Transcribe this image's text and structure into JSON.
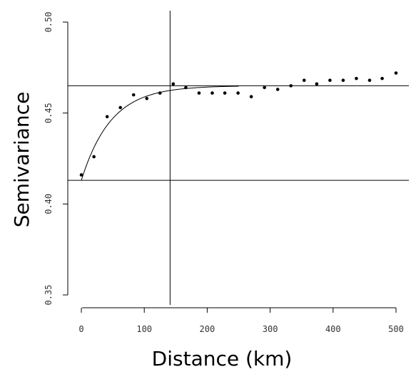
{
  "chart_data": {
    "type": "scatter",
    "title": "",
    "xlabel": "Distance (km)",
    "ylabel": "Semivariance",
    "xlim": [
      -10,
      510
    ],
    "ylim": [
      0.35,
      0.5
    ],
    "xticks": [
      0,
      100,
      200,
      300,
      400,
      500
    ],
    "xtick_labels": [
      "0",
      "100",
      "200",
      "300",
      "400",
      "500"
    ],
    "yticks": [
      0.35,
      0.4,
      0.45,
      0.5
    ],
    "ytick_labels": [
      "0.35",
      "0.40",
      "0.45",
      "0.50"
    ],
    "grid": false,
    "legend": "none",
    "series": [
      {
        "type": "scatter",
        "x": [
          0,
          20,
          41,
          62,
          83,
          104,
          125,
          146,
          166,
          187,
          208,
          228,
          249,
          270,
          291,
          312,
          333,
          354,
          374,
          395,
          416,
          437,
          458,
          478,
          500
        ],
        "y": [
          0.416,
          0.426,
          0.448,
          0.453,
          0.46,
          0.458,
          0.461,
          0.466,
          0.464,
          0.461,
          0.461,
          0.461,
          0.461,
          0.459,
          0.464,
          0.463,
          0.465,
          0.468,
          0.466,
          0.468,
          0.468,
          0.469,
          0.468,
          0.469,
          0.472
        ]
      },
      {
        "type": "line",
        "model": "exponential",
        "nugget": 0.413,
        "sill": 0.465,
        "range": 141,
        "x_end": 250
      }
    ],
    "reference_lines": {
      "horizontal": [
        0.465,
        0.413
      ],
      "vertical": [
        141
      ]
    }
  },
  "colors": {
    "background": "#ffffff",
    "ink": "#000000",
    "tick_text": "#333333"
  }
}
